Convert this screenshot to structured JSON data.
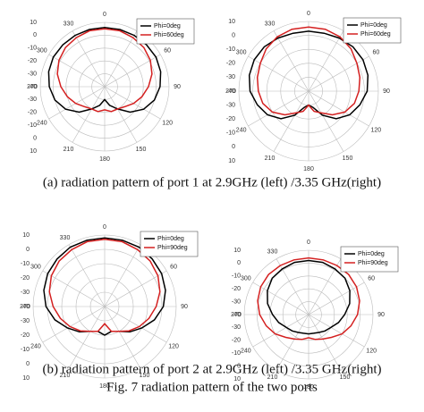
{
  "chart_data": [
    {
      "type": "polar",
      "theta": [
        0,
        15,
        30,
        45,
        60,
        75,
        90,
        105,
        120,
        135,
        150,
        165,
        180,
        195,
        210,
        225,
        240,
        255,
        270,
        285,
        300,
        315,
        330,
        345
      ],
      "rlim": [
        -40,
        10
      ],
      "rticks": [
        -40,
        -30,
        -20,
        -10,
        0,
        10
      ],
      "thetaticks": [
        0,
        30,
        60,
        90,
        120,
        150,
        180,
        210,
        240,
        270,
        300,
        330
      ],
      "legend": "upper right",
      "series": [
        {
          "name": "Phi=0deg",
          "color": "#000000",
          "values": [
            6,
            6,
            6,
            6,
            6,
            5,
            3,
            0,
            -5,
            -12,
            -20,
            -25,
            -30,
            -25,
            -20,
            -12,
            -5,
            0,
            3,
            5,
            6,
            6,
            6,
            6
          ]
        },
        {
          "name": "Phi=60deg",
          "color": "#d42020",
          "values": [
            5,
            5,
            4,
            3,
            1,
            -2,
            -6,
            -10,
            -14,
            -18,
            -20,
            -20,
            -22,
            -20,
            -20,
            -18,
            -14,
            -10,
            -6,
            -2,
            1,
            3,
            4,
            5
          ]
        }
      ]
    },
    {
      "type": "polar",
      "theta": [
        0,
        15,
        30,
        45,
        60,
        75,
        90,
        105,
        120,
        135,
        150,
        165,
        180,
        195,
        210,
        225,
        240,
        255,
        270,
        285,
        300,
        315,
        330,
        345
      ],
      "rlim": [
        -40,
        10
      ],
      "rticks": [
        -40,
        -30,
        -20,
        -10,
        0,
        10
      ],
      "thetaticks": [
        0,
        30,
        60,
        90,
        120,
        150,
        180,
        210,
        240,
        270,
        300,
        330
      ],
      "legend": "upper right",
      "series": [
        {
          "name": "Phi=0deg",
          "color": "#000000",
          "values": [
            3,
            3,
            4,
            5,
            5,
            4,
            2,
            -2,
            -6,
            -12,
            -20,
            -28,
            -30,
            -28,
            -20,
            -12,
            -6,
            -2,
            2,
            4,
            5,
            5,
            4,
            3
          ]
        },
        {
          "name": "Phi=60deg",
          "color": "#d42020",
          "values": [
            6,
            6,
            5,
            3,
            0,
            -2,
            -4,
            -6,
            -10,
            -16,
            -22,
            -25,
            -30,
            -25,
            -22,
            -16,
            -10,
            -6,
            -4,
            -2,
            0,
            3,
            5,
            6
          ]
        }
      ]
    },
    {
      "type": "polar",
      "theta": [
        0,
        15,
        30,
        45,
        60,
        75,
        90,
        105,
        120,
        135,
        150,
        165,
        180,
        195,
        210,
        225,
        240,
        255,
        270,
        285,
        300,
        315,
        330,
        345
      ],
      "rlim": [
        -40,
        10
      ],
      "rticks": [
        -40,
        -30,
        -20,
        -10,
        0,
        10
      ],
      "thetaticks": [
        0,
        30,
        60,
        90,
        120,
        150,
        180,
        210,
        240,
        270,
        300,
        330
      ],
      "legend": "upper right",
      "series": [
        {
          "name": "Phi=0deg",
          "color": "#000000",
          "values": [
            8,
            8,
            8,
            7,
            6,
            4,
            1,
            -4,
            -10,
            -15,
            -20,
            -22,
            -20,
            -22,
            -20,
            -15,
            -10,
            -4,
            1,
            4,
            6,
            7,
            8,
            8
          ]
        },
        {
          "name": "Phi=90deg",
          "color": "#d42020",
          "values": [
            7,
            7,
            6,
            5,
            3,
            0,
            -4,
            -8,
            -12,
            -16,
            -20,
            -22,
            -28,
            -22,
            -20,
            -16,
            -12,
            -8,
            -4,
            0,
            3,
            5,
            6,
            7
          ]
        }
      ]
    },
    {
      "type": "polar",
      "theta": [
        0,
        15,
        30,
        45,
        60,
        75,
        90,
        105,
        120,
        135,
        150,
        165,
        180,
        195,
        210,
        225,
        240,
        255,
        270,
        285,
        300,
        315,
        330,
        345
      ],
      "rlim": [
        -40,
        10
      ],
      "rticks": [
        -40,
        -30,
        -20,
        -10,
        0,
        10
      ],
      "thetaticks": [
        0,
        30,
        60,
        90,
        120,
        150,
        180,
        210,
        240,
        270,
        300,
        330
      ],
      "legend": "upper right",
      "series": [
        {
          "name": "Phi=0deg",
          "color": "#000000",
          "values": [
            2,
            2,
            1,
            0,
            -3,
            -7,
            -12,
            -16,
            -20,
            -22,
            -24,
            -25,
            -25,
            -25,
            -24,
            -22,
            -20,
            -16,
            -12,
            -7,
            -3,
            0,
            1,
            2
          ]
        },
        {
          "name": "Phi=90deg",
          "color": "#d42020",
          "values": [
            4,
            4,
            4,
            4,
            3,
            1,
            -2,
            -6,
            -10,
            -15,
            -18,
            -20,
            -22,
            -20,
            -18,
            -15,
            -10,
            -6,
            -2,
            1,
            3,
            4,
            4,
            4
          ]
        }
      ]
    }
  ],
  "captions": [
    "(a) radiation pattern of port 1 at 2.9GHz (left) /3.35 GHz(right)",
    "(b) radiation pattern of port 2 at 2.9GHz (left) /3.35 GHz(right)",
    "Fig. 7 radiation pattern of the two ports"
  ]
}
